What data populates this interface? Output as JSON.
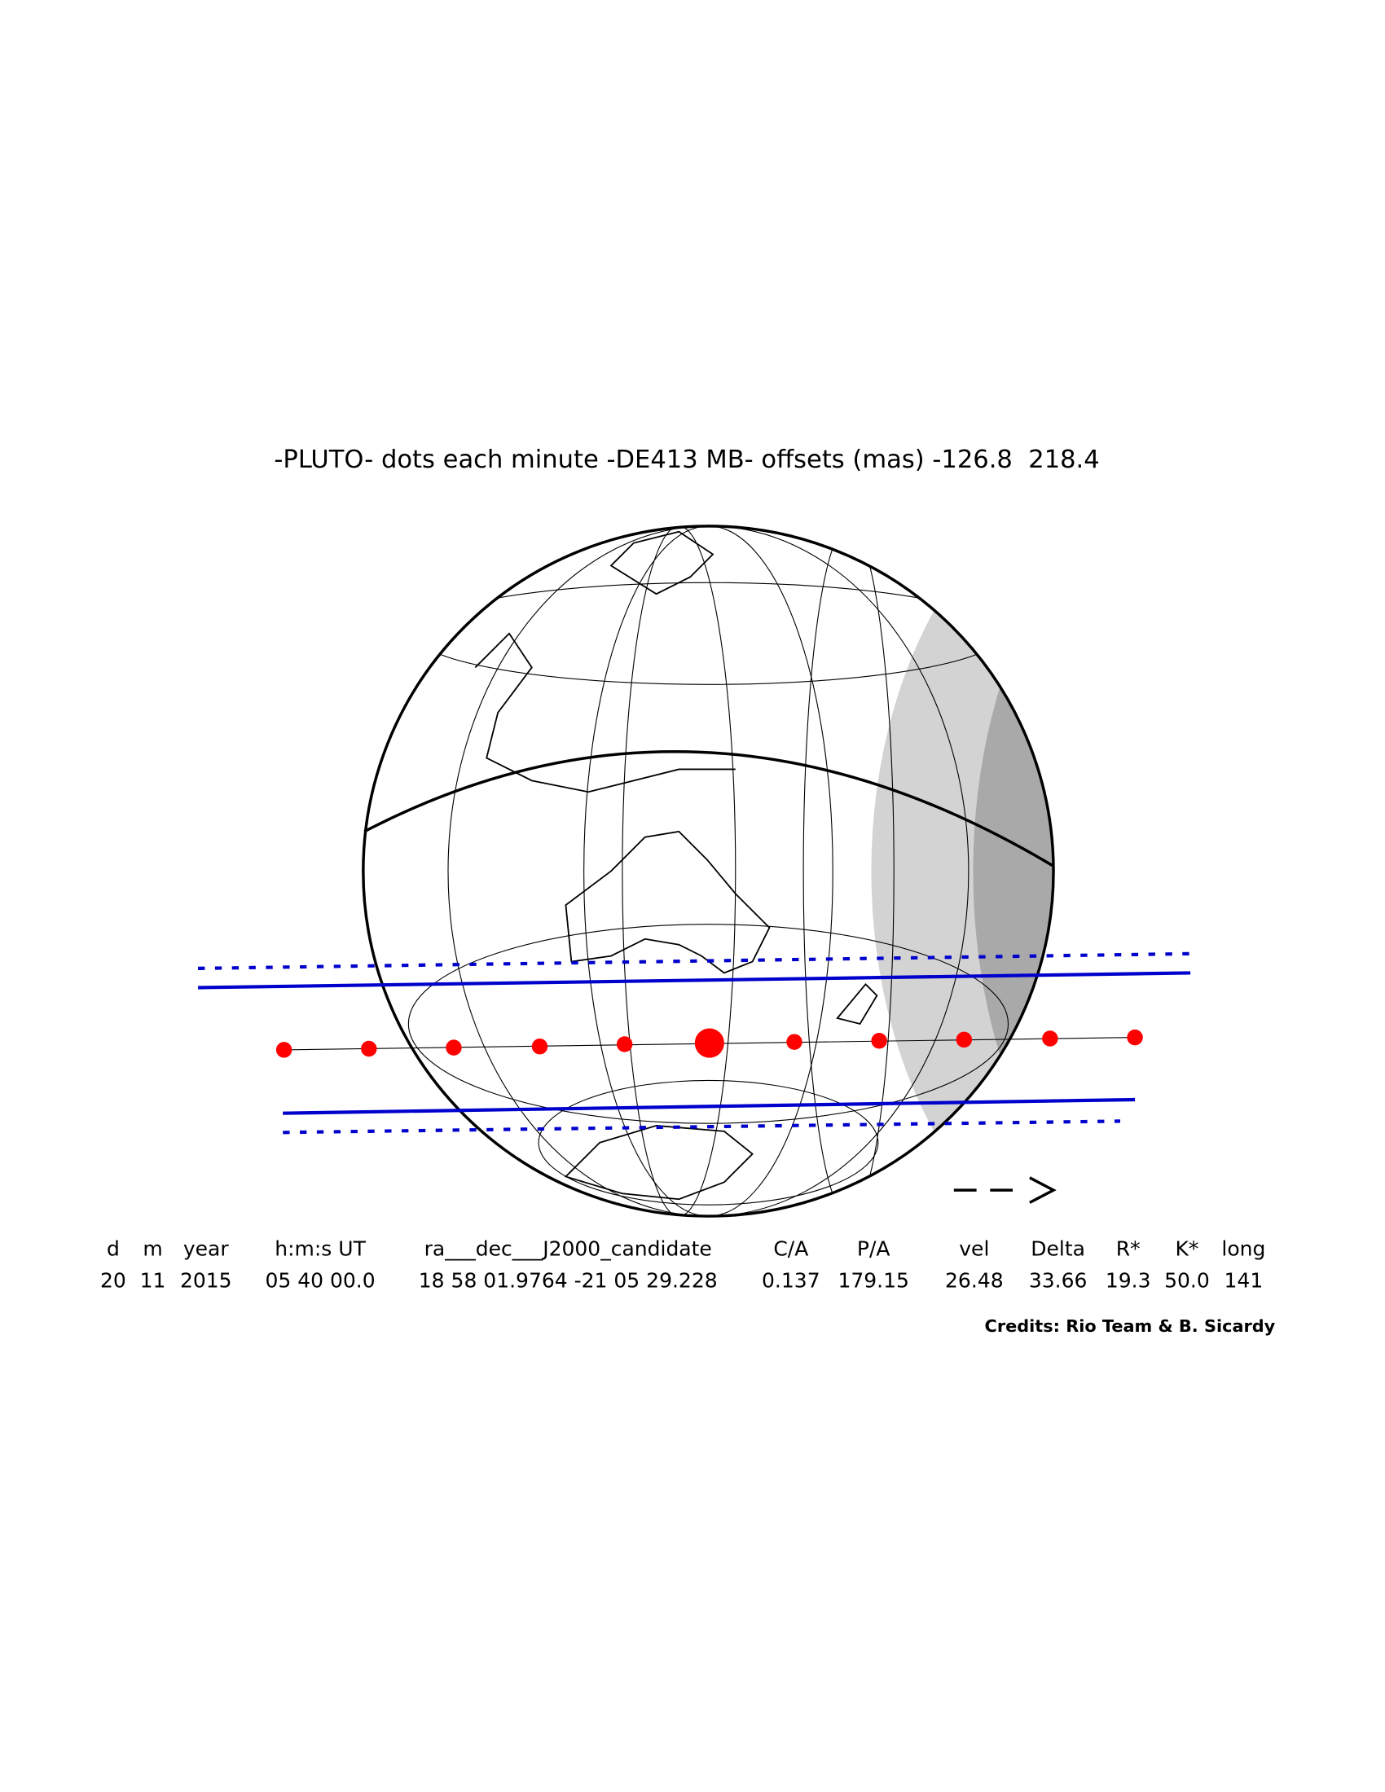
{
  "header": {
    "title": "-PLUTO- dots each minute -DE413 MB- offsets (mas) -126.8  218.4"
  },
  "table": {
    "headers": [
      "d",
      "m",
      "year",
      "h:m:s UT",
      "ra___dec___J2000_candidate",
      "C/A",
      "P/A",
      "vel",
      "Delta",
      "R*",
      "K*",
      "long"
    ],
    "values": [
      "20",
      "11",
      "2015",
      "05 40 00.0",
      "18 58 01.9764 -21 05 29.228",
      "0.137",
      "179.15",
      "26.48",
      "33.66",
      "19.3",
      "50.0",
      "141"
    ]
  },
  "footer": {
    "credits": "Credits: Rio Team & B. Sicardy"
  }
}
